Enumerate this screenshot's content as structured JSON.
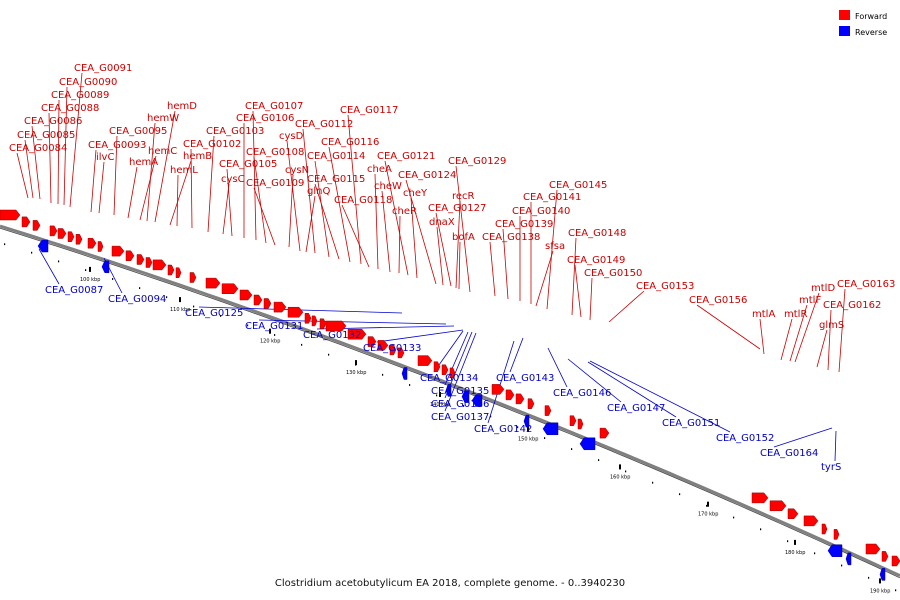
{
  "legend": {
    "forward_label": "Forward",
    "reverse_label": "Reverse",
    "forward_color": "#ff0000",
    "reverse_color": "#0000ff"
  },
  "caption": "Clostridium acetobutylicum EA 2018, complete genome. - 0..3940230",
  "colors": {
    "backbone": "#808080",
    "forward_label": "#cc0000",
    "reverse_label": "#0000cc"
  },
  "ticks": [
    "100 kbp",
    "110 kbp",
    "120 kbp",
    "130 kbp",
    "140 kbp",
    "150 kbp",
    "160 kbp",
    "170 kbp",
    "180 kbp",
    "190 kbp"
  ],
  "forward_genes": [
    "CEA_G0084",
    "CEA_G0085",
    "CEA_G0086",
    "CEA_G0088",
    "CEA_G0089",
    "CEA_G0090",
    "CEA_G0091",
    "CEA_G0093",
    "ilvC",
    "CEA_G0095",
    "hemA",
    "hemC",
    "hemW",
    "hemD",
    "hemB",
    "hemL",
    "CEA_G0102",
    "CEA_G0103",
    "cysC",
    "CEA_G0105",
    "CEA_G0106",
    "CEA_G0107",
    "CEA_G0108",
    "CEA_G0109",
    "cysN",
    "cysD",
    "glnQ",
    "CEA_G0112",
    "CEA_G0114",
    "CEA_G0115",
    "CEA_G0116",
    "CEA_G0117",
    "CEA_G0118",
    "cheA",
    "cheW",
    "cheR",
    "CEA_G0121",
    "cheY",
    "CEA_G0124",
    "dnaX",
    "CEA_G0127",
    "recR",
    "bofA",
    "CEA_G0129",
    "CEA_G0138",
    "CEA_G0139",
    "CEA_G0140",
    "CEA_G0141",
    "sfsa",
    "CEA_G0145",
    "CEA_G0148",
    "CEA_G0149",
    "CEA_G0150",
    "CEA_G0153",
    "CEA_G0156",
    "mtlA",
    "mtlR",
    "mtlF",
    "mtlD",
    "glmS",
    "CEA_G0162",
    "CEA_G0163"
  ],
  "reverse_genes": [
    "CEA_G0087",
    "CEA_G0094",
    "CEA_G0125",
    "CEA_G0131",
    "CEA_G0132",
    "CEA_G0133",
    "CEA_G0134",
    "CEA_G0135",
    "CEA_G0136",
    "CEA_G0137",
    "CEA_G0142",
    "CEA_G0143",
    "CEA_G0146",
    "CEA_G0147",
    "CEA_G0151",
    "CEA_G0152",
    "CEA_G0164",
    "tyrS"
  ]
}
